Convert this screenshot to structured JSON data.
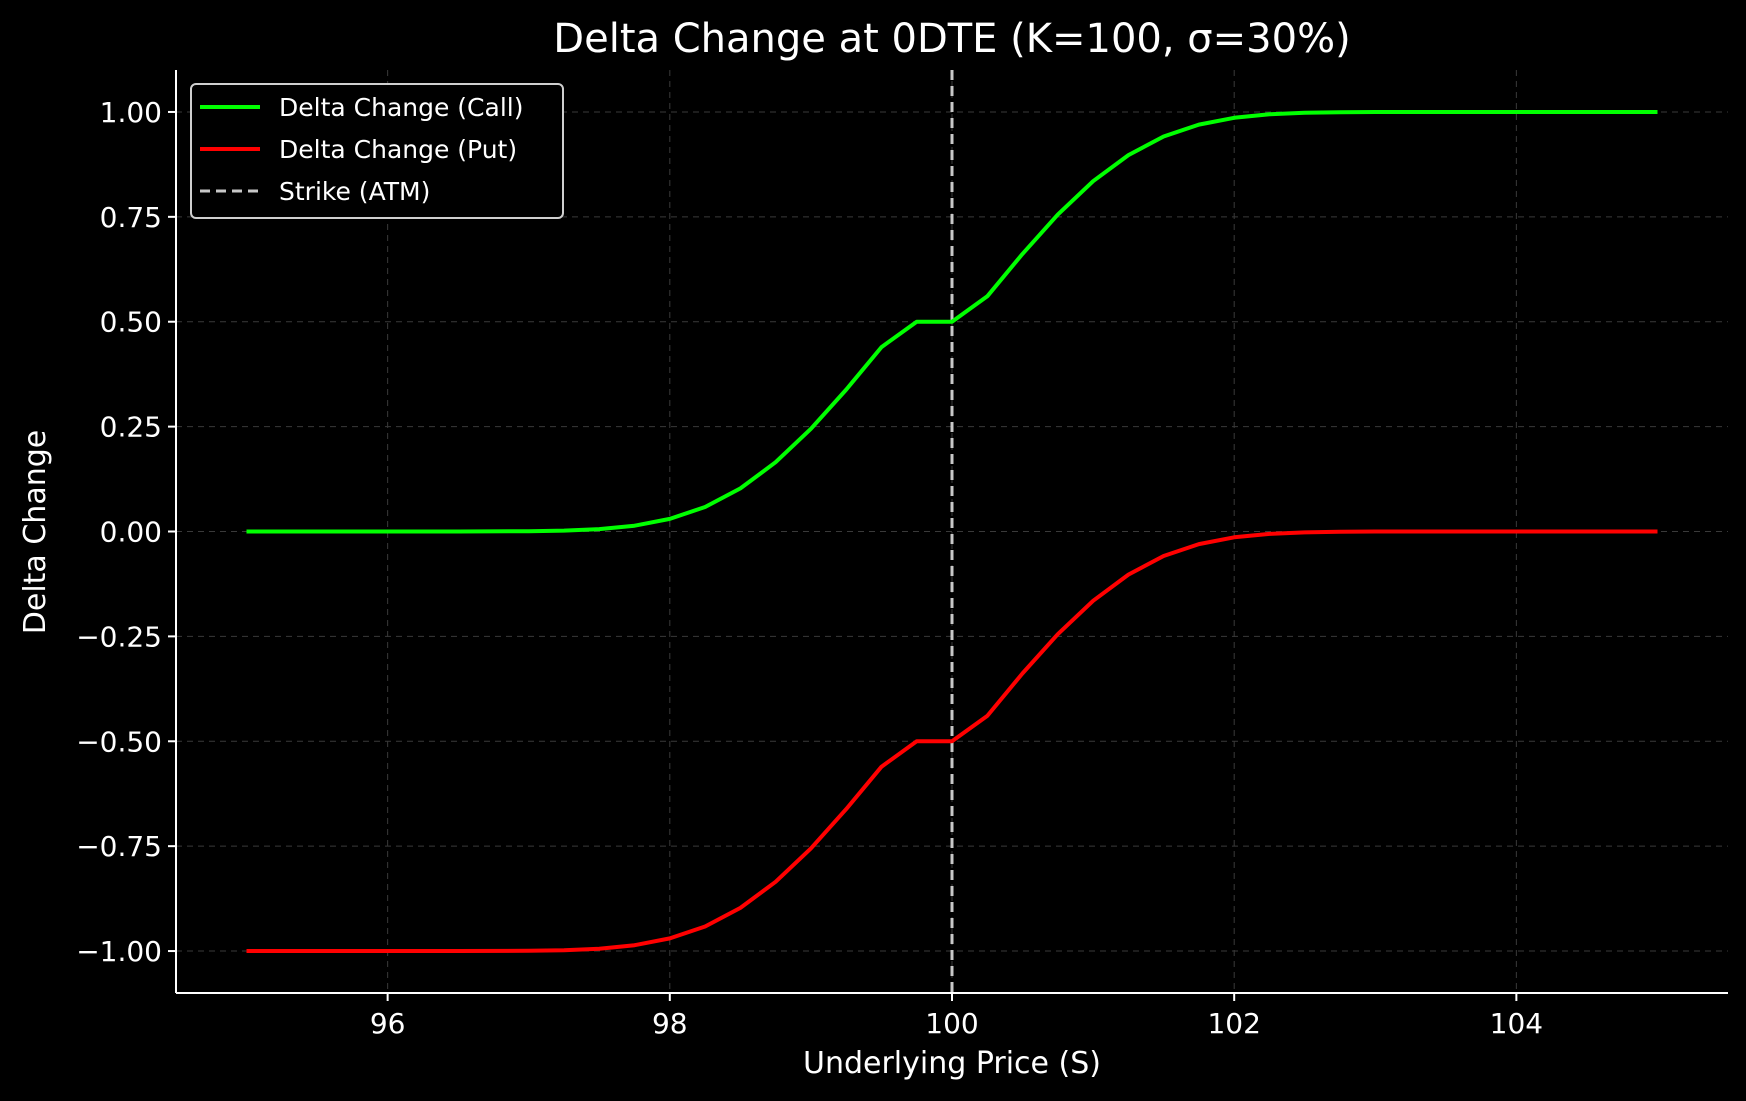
{
  "chart_data": {
    "type": "line",
    "title": "Delta Change at 0DTE (K=100, σ=30%)",
    "xlabel": "Underlying Price (S)",
    "ylabel": "Delta Change",
    "xlim": [
      94.5,
      105.5
    ],
    "ylim": [
      -1.1,
      1.1
    ],
    "x_ticks": [
      96,
      98,
      100,
      102,
      104
    ],
    "y_ticks": [
      1.0,
      0.75,
      0.5,
      0.25,
      0.0,
      -0.25,
      -0.5,
      -0.75,
      -1.0
    ],
    "x_tick_labels": [
      "96",
      "98",
      "100",
      "102",
      "104"
    ],
    "y_tick_labels": [
      "1.00",
      "0.75",
      "0.50",
      "0.25",
      "0.00",
      "−0.25",
      "−0.50",
      "−0.75",
      "−1.00"
    ],
    "grid": true,
    "legend_position": "top-left",
    "x": [
      95,
      95.5,
      96,
      96.5,
      97,
      97.25,
      97.5,
      97.75,
      98,
      98.25,
      98.5,
      98.75,
      99,
      99.25,
      99.5,
      99.75,
      100,
      100.25,
      100.5,
      100.75,
      101,
      101.25,
      101.5,
      101.75,
      102,
      102.25,
      102.5,
      102.75,
      103,
      103.5,
      104,
      104.5,
      105
    ],
    "series": [
      {
        "name": "Delta Change (Call)",
        "color": "#00ff00",
        "style": "solid",
        "values": [
          0.0,
          0.0,
          0.0,
          0.0,
          0.0007,
          0.0021,
          0.0057,
          0.0139,
          0.0301,
          0.0585,
          0.1028,
          0.1651,
          0.2447,
          0.3383,
          0.4395,
          0.5,
          0.5,
          0.5605,
          0.6617,
          0.7553,
          0.8349,
          0.8972,
          0.9415,
          0.9699,
          0.9861,
          0.9943,
          0.9979,
          0.9993,
          1.0,
          1.0,
          1.0,
          1.0,
          1.0
        ]
      },
      {
        "name": "Delta Change (Put)",
        "color": "#ff0000",
        "style": "solid",
        "values": [
          -1.0,
          -1.0,
          -1.0,
          -1.0,
          -0.9993,
          -0.9979,
          -0.9943,
          -0.9861,
          -0.9699,
          -0.9415,
          -0.8972,
          -0.8349,
          -0.7553,
          -0.6617,
          -0.5605,
          -0.5,
          -0.5,
          -0.4395,
          -0.3383,
          -0.2447,
          -0.1651,
          -0.1028,
          -0.0585,
          -0.0301,
          -0.0139,
          -0.0057,
          -0.0021,
          -0.0007,
          0.0,
          0.0,
          0.0,
          0.0,
          0.0
        ]
      }
    ],
    "vline": {
      "name": "Strike (ATM)",
      "x": 100,
      "color": "#c8c8c8",
      "style": "dashed"
    }
  }
}
